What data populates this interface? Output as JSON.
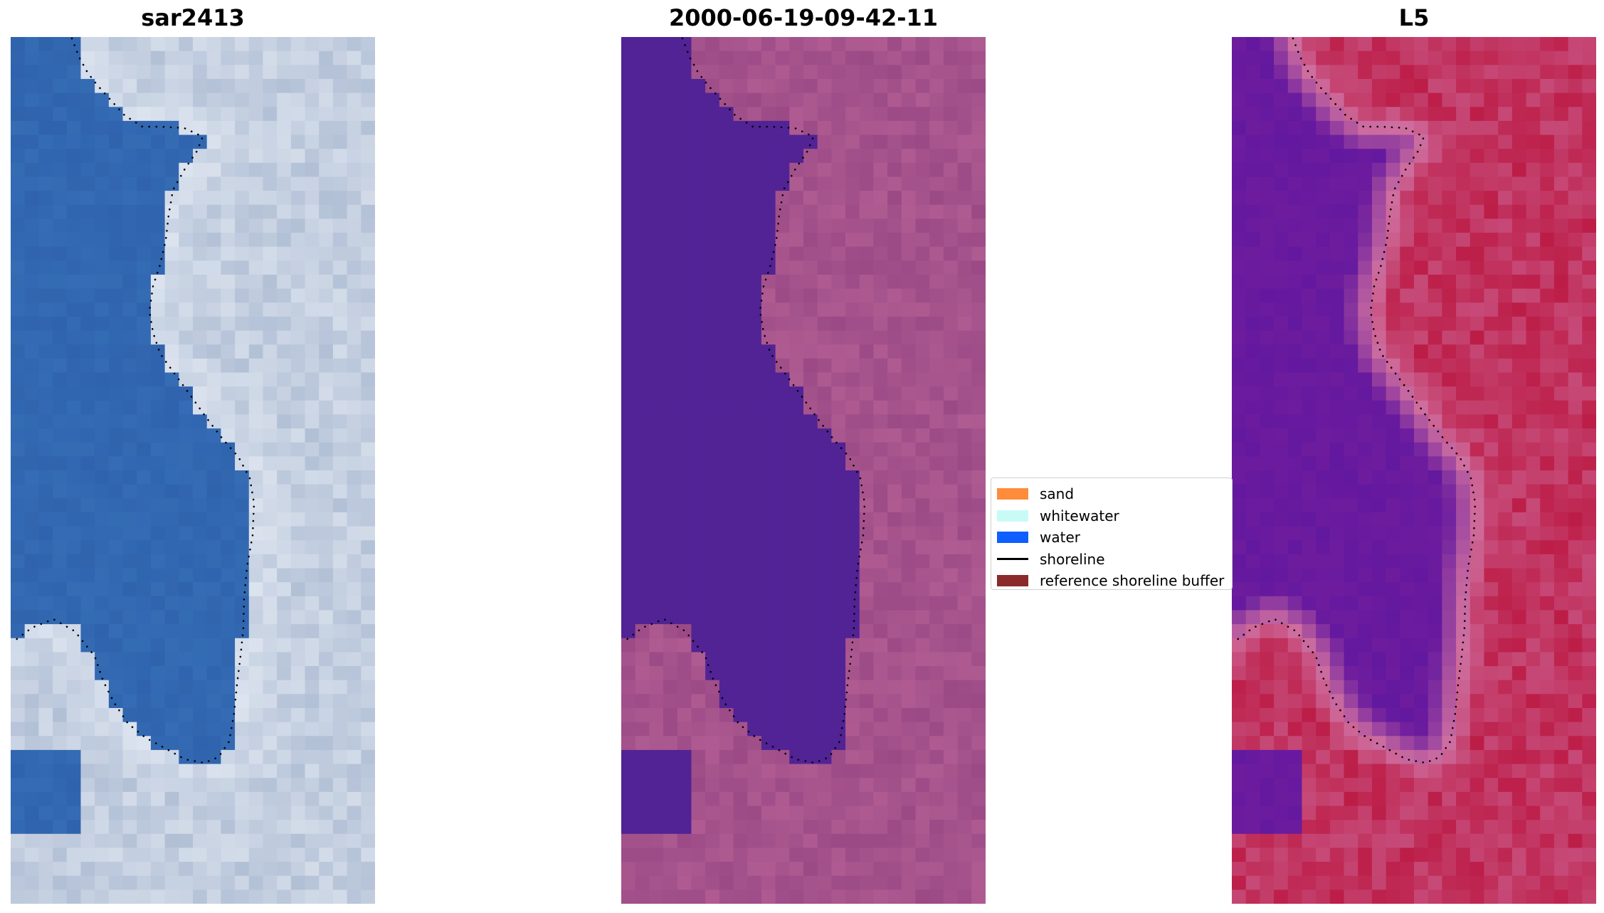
{
  "panels": [
    {
      "title": "sar2413",
      "palette": "rgb",
      "colors": {
        "water": "#2f63ad",
        "land": "#b2c0d6",
        "bright": "#eef2f8"
      }
    },
    {
      "title": "2000-06-19-09-42-11",
      "palette": "classified",
      "colors": {
        "water": "#512395",
        "land": "#9b4a86",
        "bright": "#c06a9c"
      }
    },
    {
      "title": "L5",
      "palette": "index",
      "colors": {
        "water": "#6e1c9e",
        "land": "#bc1d47",
        "edge": "#cf6fa0"
      }
    }
  ],
  "legend": {
    "items": [
      {
        "label": "sand",
        "color": "#ff8c3a",
        "kind": "patch"
      },
      {
        "label": "whitewater",
        "color": "#c9fbf6",
        "kind": "patch"
      },
      {
        "label": "water",
        "color": "#0f5eff",
        "kind": "patch"
      },
      {
        "label": "shoreline",
        "color": "#000000",
        "kind": "line"
      },
      {
        "label": "reference shoreline buffer",
        "color": "#8b2a2a",
        "kind": "patch"
      }
    ]
  }
}
